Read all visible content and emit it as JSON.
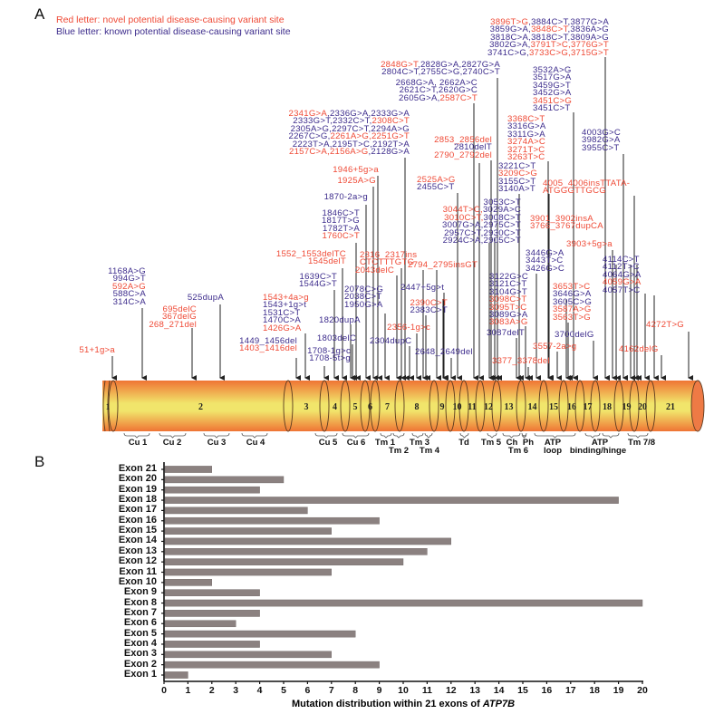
{
  "panel_a_letter": "A",
  "panel_b_letter": "B",
  "colors": {
    "novel": "#ef4a36",
    "known": "#3d2c8c",
    "bar": "#8b8180",
    "exon_mid": "#f1e56b",
    "exon_edge": "#ef7434"
  },
  "legend": {
    "novel": "Red letter: novel potential disease-causing variant site",
    "known": "Blue letter: known potential disease-causing variant site"
  },
  "exons": [
    "1",
    "2",
    "3",
    "4",
    "5",
    "6",
    "7",
    "8",
    "9",
    "10",
    "11",
    "12",
    "13",
    "14",
    "15",
    "16",
    "17",
    "18",
    "19",
    "20",
    "21"
  ],
  "domains": [
    "Cu 1",
    "Cu 2",
    "Cu 3",
    "Cu 4",
    "Cu 5",
    "Cu 6",
    "Tm 1",
    "Tm 2",
    "Tm 3",
    "Tm 4",
    "Td",
    "Tm 5",
    "Ch",
    "Tm 6",
    "Ph",
    "ATP",
    "loop",
    "ATP",
    "binding/hinge",
    "Tm 7/8"
  ],
  "variants": [
    [
      [
        [
          "51+1g>a",
          "n"
        ]
      ]
    ],
    [
      [
        [
          "1168A>G",
          "k"
        ]
      ],
      [
        [
          "994G>T",
          "k"
        ]
      ],
      [
        [
          "592A>G",
          "n"
        ]
      ],
      [
        [
          "588C>A",
          "k"
        ]
      ],
      [
        [
          "314C>A",
          "k"
        ]
      ]
    ],
    [
      [
        [
          "695delC",
          "n"
        ]
      ],
      [
        [
          "367delG",
          "n"
        ]
      ],
      [
        [
          "268_271del",
          "n"
        ]
      ]
    ],
    [
      [
        [
          "525dupA",
          "k"
        ]
      ]
    ],
    [
      [
        [
          "1449_1456del",
          "k"
        ]
      ],
      [
        [
          "1403_1416del",
          "n"
        ]
      ]
    ],
    [
      [
        [
          "1708-1g>c",
          "k"
        ]
      ],
      [
        [
          "1708-5t>g",
          "k"
        ]
      ]
    ],
    [
      [
        [
          "1639C>T",
          "k"
        ]
      ],
      [
        [
          "1544G>T",
          "k"
        ]
      ]
    ],
    [
      [
        [
          "1543+4a>g",
          "n"
        ]
      ],
      [
        [
          "1543+1g>t",
          "k"
        ]
      ],
      [
        [
          "1531C>T",
          "k"
        ]
      ],
      [
        [
          "1470C>A",
          "k"
        ]
      ],
      [
        [
          "1426G>A",
          "n"
        ]
      ]
    ],
    [
      [
        [
          "1820dupA",
          "k"
        ]
      ]
    ],
    [
      [
        [
          "1552_1553delTC",
          "n"
        ]
      ],
      [
        [
          "1545delT",
          "n"
        ]
      ]
    ],
    [
      [
        [
          "1803delC",
          "k"
        ]
      ]
    ],
    [
      [
        [
          "1846C>T",
          "k"
        ]
      ],
      [
        [
          "1817T>G",
          "k"
        ]
      ],
      [
        [
          "1782T>A",
          "k"
        ]
      ],
      [
        [
          "1760C>T",
          "n"
        ]
      ]
    ],
    [
      [
        [
          "1870-2a>g",
          "k"
        ]
      ]
    ],
    [
      [
        [
          "1925A>G",
          "n"
        ]
      ]
    ],
    [
      [
        [
          "1946+5g>a",
          "n"
        ]
      ]
    ],
    [
      [
        [
          "2078C>G",
          "k"
        ]
      ],
      [
        [
          "2038C>T",
          "k"
        ]
      ],
      [
        [
          "1950G>A",
          "k"
        ]
      ]
    ],
    [
      [
        [
          "2043delC",
          "n"
        ]
      ]
    ],
    [
      [
        [
          "2304dupC",
          "k"
        ]
      ]
    ],
    [
      [
        [
          "2316_2317ins",
          "n"
        ]
      ],
      [
        [
          "CTCTTTGTG",
          "n"
        ]
      ]
    ],
    [
      [
        [
          "2341G>A",
          "n"
        ],
        [
          ",2336G>A,2333G>A",
          "k"
        ]
      ],
      [
        [
          "2333G>T,2332C>T,",
          "k"
        ],
        [
          "2308C>T",
          "n"
        ]
      ],
      [
        [
          "2305A>G,2297C>T,2294A>G",
          "k"
        ]
      ],
      [
        [
          "2267C>G,",
          "k"
        ],
        [
          "2261A>G,2251G>T",
          "n"
        ]
      ],
      [
        [
          "2223T>A,2195T>C,2192T>A",
          "k"
        ]
      ],
      [
        [
          "2157C>A,2156A>G",
          "n"
        ],
        [
          ",2128G>A",
          "k"
        ]
      ]
    ],
    [
      [
        [
          "2356-1g>c",
          "n"
        ]
      ]
    ],
    [
      [
        [
          "2390C>T",
          "n"
        ]
      ],
      [
        [
          "2383C>T",
          "k"
        ]
      ]
    ],
    [
      [
        [
          "2447+5g>t",
          "k"
        ]
      ]
    ],
    [
      [
        [
          "2525A>G",
          "n"
        ]
      ],
      [
        [
          "2455C>T",
          "k"
        ]
      ]
    ],
    [
      [
        [
          "2648_2649del",
          "k"
        ]
      ]
    ],
    [
      [
        [
          "2794_2795insGT",
          "n"
        ]
      ]
    ],
    [
      [
        [
          "2853_2856del",
          "n"
        ]
      ],
      [
        [
          "2810delT",
          "k"
        ]
      ],
      [
        [
          "2790_2792del",
          "n"
        ]
      ]
    ],
    [
      [
        [
          "2668G>A, 2662A>C",
          "k"
        ]
      ],
      [
        [
          "2621C>T,2620G>C",
          "k"
        ]
      ],
      [
        [
          "2605G>A,",
          "k"
        ],
        [
          "2587C>T",
          "n"
        ]
      ]
    ],
    [
      [
        [
          "2848G>T",
          "n"
        ],
        [
          ",2828G>A,2827G>A",
          "k"
        ]
      ],
      [
        [
          "2804C>T,2755C>G,2740C>T",
          "k"
        ]
      ]
    ],
    [
      [
        [
          "3053C>T",
          "k"
        ]
      ],
      [
        [
          "3044T>C,",
          "n"
        ],
        [
          "3029A>C",
          "k"
        ]
      ],
      [
        [
          "3010C>T,",
          "n"
        ],
        [
          "3008C>T",
          "k"
        ]
      ],
      [
        [
          "3007G>A,2975C>T",
          "k"
        ]
      ],
      [
        [
          "2957C>T,2930C>T",
          "k"
        ]
      ],
      [
        [
          "2924C>A,2905C>T",
          "k"
        ]
      ]
    ],
    [
      [
        [
          "3122G>C",
          "k"
        ]
      ],
      [
        [
          "3121C>T",
          "k"
        ]
      ],
      [
        [
          "3104G>T",
          "k"
        ]
      ],
      [
        [
          "3098C>T",
          "n"
        ]
      ],
      [
        [
          "3095T>C",
          "n"
        ]
      ],
      [
        [
          "3089G>A",
          "k"
        ]
      ],
      [
        [
          "3083A>G",
          "n"
        ]
      ]
    ],
    [
      [
        [
          "3087delT",
          "k"
        ]
      ]
    ],
    [
      [
        [
          "3221C>T",
          "k"
        ]
      ],
      [
        [
          "3209C>G",
          "n"
        ]
      ],
      [
        [
          "3155C>T",
          "k"
        ]
      ],
      [
        [
          "3140A>T",
          "k"
        ]
      ]
    ],
    [
      [
        [
          "3368C>T",
          "n"
        ]
      ],
      [
        [
          "3316G>A",
          "k"
        ]
      ],
      [
        [
          "3311G>A",
          "k"
        ]
      ],
      [
        [
          "3274A>C",
          "n"
        ]
      ],
      [
        [
          "3271T>C",
          "n"
        ]
      ],
      [
        [
          "3263T>C",
          "n"
        ]
      ]
    ],
    [
      [
        [
          "3532A>G",
          "k"
        ]
      ],
      [
        [
          "3517G>A",
          "k"
        ]
      ],
      [
        [
          "3459G>T",
          "k"
        ]
      ],
      [
        [
          "3452G>A",
          "k"
        ]
      ],
      [
        [
          "3451C>G",
          "n"
        ]
      ],
      [
        [
          "3451C>T",
          "k"
        ]
      ]
    ],
    [
      [
        [
          "3896T>G",
          "n"
        ],
        [
          ",3884C>T,3877G>A",
          "k"
        ]
      ],
      [
        [
          "3859G>A,",
          "k"
        ],
        [
          "3848C>T",
          "n"
        ],
        [
          ",3836A>G",
          "k"
        ]
      ],
      [
        [
          "3818C>A,3818C>T,3809A>G",
          "k"
        ]
      ],
      [
        [
          "3802G>A,",
          "k"
        ],
        [
          "3791T>C,3776G>T",
          "n"
        ]
      ],
      [
        [
          "3741C>G,",
          "k"
        ],
        [
          "3733C>G,3715G>T",
          "n"
        ]
      ]
    ],
    [
      [
        [
          "4003G>C",
          "k"
        ]
      ],
      [
        [
          "3982G>A",
          "k"
        ]
      ],
      [
        [
          "3955C>T",
          "k"
        ]
      ]
    ],
    [
      [
        [
          "4005_4006insTTATA-",
          "n"
        ]
      ],
      [
        [
          " ATGGGTTGCG",
          "n"
        ]
      ]
    ],
    [
      [
        [
          "3901_3902insA",
          "n"
        ]
      ],
      [
        [
          "3766_3767dupCA",
          "n"
        ]
      ]
    ],
    [
      [
        [
          "3903+5g>a",
          "n"
        ]
      ]
    ],
    [
      [
        [
          "3446G>A",
          "k"
        ]
      ],
      [
        [
          "3443T>C",
          "k"
        ]
      ],
      [
        [
          "3426G>C",
          "k"
        ]
      ]
    ],
    [
      [
        [
          "4114C>T",
          "k"
        ]
      ],
      [
        [
          "4112T>C",
          "k"
        ]
      ],
      [
        [
          "4064G>A",
          "k"
        ]
      ],
      [
        [
          "4059G>A",
          "n"
        ]
      ],
      [
        [
          "4057T>C",
          "k"
        ]
      ]
    ],
    [
      [
        [
          "3653T>C",
          "n"
        ]
      ],
      [
        [
          "3646G>A",
          "k"
        ]
      ],
      [
        [
          "3605C>G",
          "k"
        ]
      ],
      [
        [
          "3587A>G",
          "n"
        ]
      ],
      [
        [
          "3563T>G",
          "n"
        ]
      ]
    ],
    [
      [
        [
          "3700delG",
          "k"
        ]
      ]
    ],
    [
      [
        [
          "3557-2a>g",
          "n"
        ]
      ]
    ],
    [
      [
        [
          "3377_3378del",
          "n"
        ]
      ]
    ],
    [
      [
        [
          "4162delG",
          "n"
        ]
      ]
    ],
    [
      [
        [
          "4272T>G",
          "n"
        ]
      ]
    ]
  ],
  "chart_data": {
    "type": "bar",
    "orientation": "horizontal",
    "categories": [
      "Exon 1",
      "Exon 2",
      "Exon 3",
      "Exon 4",
      "Exon 5",
      "Exon 6",
      "Exon 7",
      "Exon 8",
      "Exon 9",
      "Exon 10",
      "Exon 11",
      "Exon 12",
      "Exon 13",
      "Exon 14",
      "Exon 15",
      "Exon 16",
      "Exon 17",
      "Exon 18",
      "Exon 19",
      "Exon 20",
      "Exon 21"
    ],
    "values": [
      1,
      9,
      7,
      4,
      8,
      3,
      4,
      20,
      4,
      2,
      7,
      10,
      11,
      12,
      7,
      9,
      6,
      19,
      4,
      5,
      2
    ],
    "xlabel_prefix": "Mutation distribution within 21 exons of ",
    "xlabel_gene": "ATP7B",
    "xlim": [
      0,
      20
    ],
    "xticks": [
      "0",
      "1",
      "2",
      "3",
      "4",
      "5",
      "6",
      "7",
      "8",
      "9",
      "10",
      "11",
      "12",
      "13",
      "14",
      "15",
      "16",
      "17",
      "18",
      "19",
      "20"
    ],
    "grid": false
  }
}
